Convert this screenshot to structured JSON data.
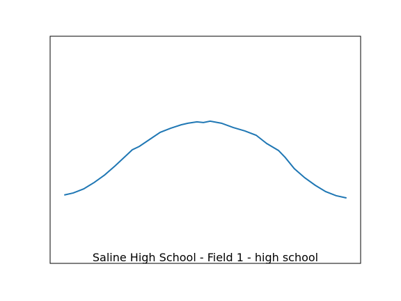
{
  "chart_data": {
    "type": "line",
    "title": "Saline High School - Field 1 - high school",
    "x": [
      0,
      3.2,
      6.9,
      10.6,
      14.3,
      18.0,
      21.7,
      24.1,
      26.6,
      30.3,
      34.0,
      37.7,
      41.4,
      43.8,
      47.0,
      49.3,
      51.7,
      55.7,
      59.9,
      64.0,
      68.0,
      71.7,
      75.9,
      78.3,
      81.5,
      85.2,
      88.9,
      92.6,
      96.3,
      100
    ],
    "series": [
      {
        "color": "#1f77b4",
        "values": [
          30.1,
          31.0,
          32.8,
          35.6,
          38.9,
          42.9,
          47.2,
          50.0,
          51.5,
          54.6,
          57.7,
          59.5,
          61.0,
          61.7,
          62.3,
          62.0,
          62.6,
          61.7,
          59.8,
          58.3,
          56.4,
          52.8,
          49.7,
          46.6,
          41.7,
          37.7,
          34.4,
          31.6,
          29.8,
          28.8
        ]
      }
    ],
    "xlim": [
      -5,
      105
    ],
    "ylim": [
      0,
      100
    ]
  }
}
